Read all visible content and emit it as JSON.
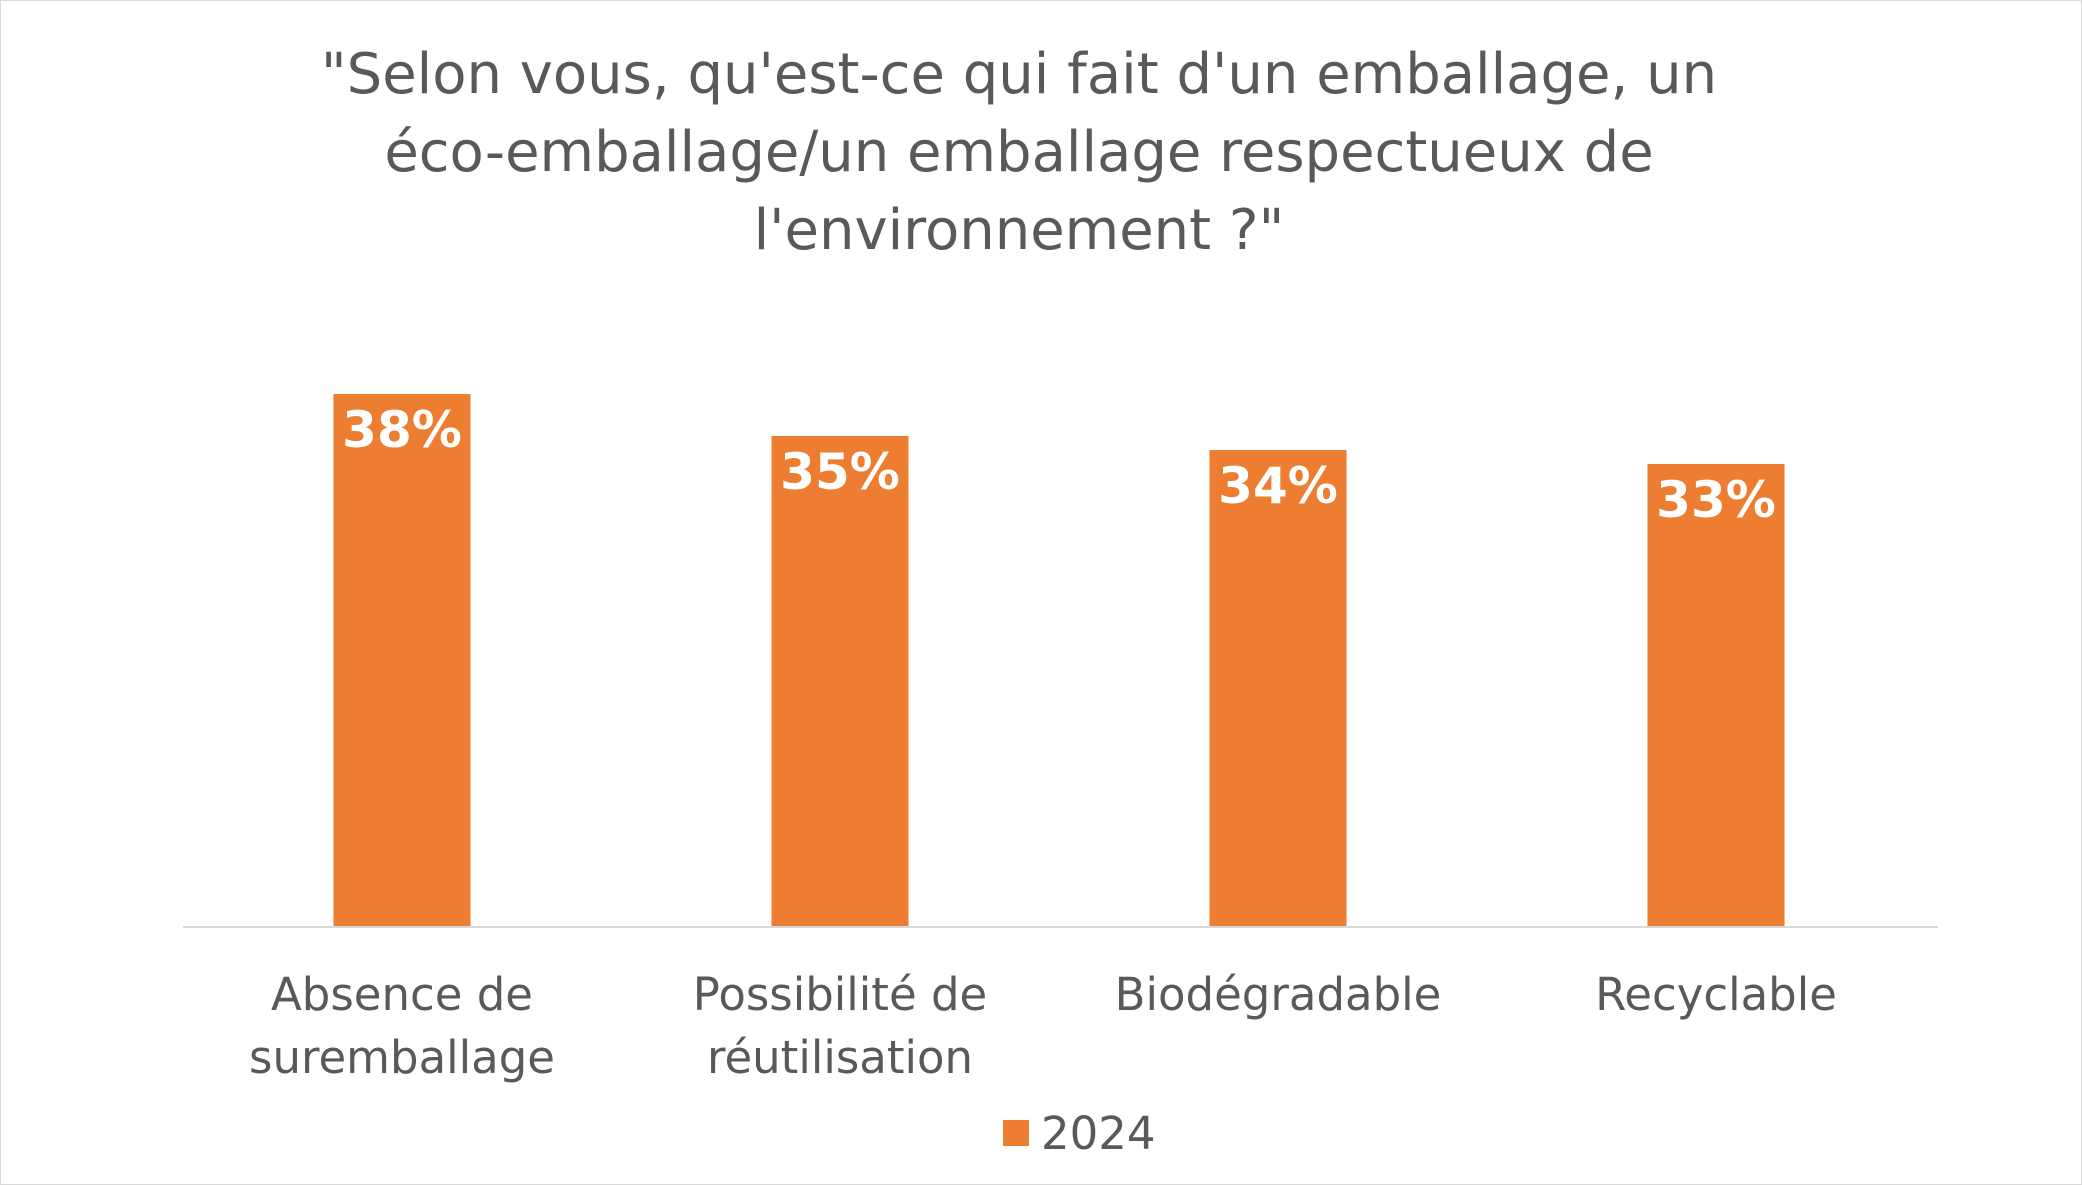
{
  "chart_data": {
    "type": "bar",
    "title_lines": [
      "\"Selon vous, qu'est-ce qui fait d'un emballage, un",
      "éco-emballage/un emballage respectueux de",
      "l'environnement ?\""
    ],
    "categories": [
      [
        "Absence de",
        "suremballage"
      ],
      [
        "Possibilité de",
        "réutilisation"
      ],
      [
        "Biodégradable"
      ],
      [
        "Recyclable"
      ]
    ],
    "series": [
      {
        "name": "2024",
        "color": "#ED7D31",
        "values": [
          38,
          35,
          34,
          33
        ],
        "labels": [
          "38%",
          "35%",
          "34%",
          "33%"
        ]
      }
    ],
    "legend_position": "bottom",
    "grid": false
  }
}
